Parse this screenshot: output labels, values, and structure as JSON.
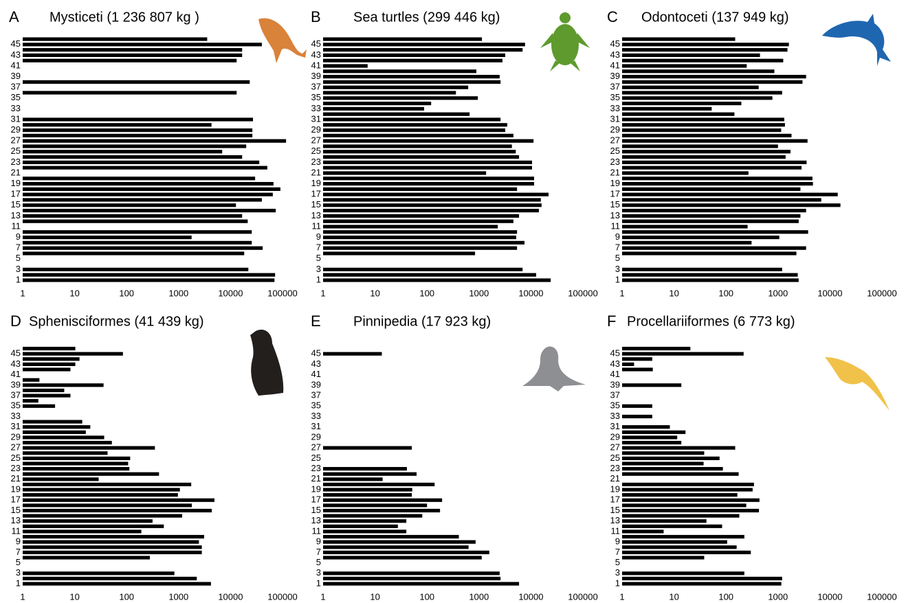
{
  "chart_data": [
    {
      "type": "bar",
      "orientation": "horizontal",
      "label": "A",
      "title": "Mysticeti (1 236 807 kg )",
      "color": "#000000",
      "xscale": "log",
      "xlim": [
        1,
        100000
      ],
      "xticks": [
        1,
        10,
        100,
        1000,
        10000,
        100000
      ],
      "categories": [
        "1",
        null,
        "3",
        null,
        "5",
        null,
        "7",
        null,
        "9",
        null,
        "11",
        null,
        "13",
        null,
        "15",
        null,
        "17",
        null,
        "19",
        null,
        "21",
        null,
        "23",
        null,
        "25",
        null,
        "27",
        null,
        "29",
        null,
        "31",
        null,
        "33",
        null,
        "35",
        null,
        "37",
        null,
        "39",
        null,
        "41",
        null,
        "43",
        null,
        "45",
        null
      ],
      "values": [
        70000,
        72000,
        22000,
        null,
        null,
        18300,
        41500,
        25600,
        1780,
        25600,
        null,
        21400,
        16700,
        74000,
        12700,
        40000,
        65000,
        91000,
        67000,
        29700,
        null,
        51000,
        35700,
        16700,
        6900,
        20000,
        117000,
        26300,
        26300,
        4300,
        27000,
        null,
        null,
        null,
        null,
        13100,
        null,
        23400,
        null,
        null,
        null,
        13100,
        16700,
        16700,
        40000,
        3550
      ]
    },
    {
      "type": "bar",
      "orientation": "horizontal",
      "label": "B",
      "title": "Sea turtles (299 446 kg)",
      "color": "#000000",
      "xscale": "log",
      "xlim": [
        1,
        100000
      ],
      "xticks": [
        1,
        10,
        100,
        1000,
        10000,
        100000
      ],
      "categories": [
        "1",
        null,
        "3",
        null,
        "5",
        null,
        "7",
        null,
        "9",
        null,
        "11",
        null,
        "13",
        null,
        "15",
        null,
        "17",
        null,
        "19",
        null,
        "21",
        null,
        "23",
        null,
        "25",
        null,
        "27",
        null,
        "29",
        null,
        "31",
        null,
        "33",
        null,
        "35",
        null,
        "37",
        null,
        "39",
        null,
        "41",
        null,
        "43",
        null,
        "45",
        null
      ],
      "values": [
        24000,
        12600,
        6900,
        null,
        null,
        840,
        5400,
        7500,
        5200,
        5400,
        2300,
        4600,
        5900,
        14200,
        16000,
        15500,
        21800,
        5400,
        11500,
        11500,
        1370,
        10500,
        10500,
        5900,
        5100,
        4300,
        11200,
        4600,
        3200,
        3500,
        2600,
        660,
        88,
        120,
        950,
        360,
        620,
        2600,
        2500,
        890,
        7.2,
        2830,
        3200,
        6900,
        7700,
        1140
      ]
    },
    {
      "type": "bar",
      "orientation": "horizontal",
      "label": "C",
      "title": "Odontoceti (137 949 kg)",
      "color": "#000000",
      "xscale": "log",
      "xlim": [
        1,
        100000
      ],
      "xticks": [
        1,
        10,
        100,
        1000,
        10000,
        100000
      ],
      "categories": [
        "1",
        null,
        "3",
        null,
        "5",
        null,
        "7",
        null,
        "9",
        null,
        "11",
        null,
        "13",
        null,
        "15",
        null,
        "17",
        null,
        "19",
        null,
        "21",
        null,
        "23",
        null,
        "25",
        null,
        "27",
        null,
        "29",
        null,
        "31",
        null,
        "33",
        null,
        "35",
        null,
        "37",
        null,
        "39",
        null,
        "41",
        null,
        "43",
        null,
        "45",
        null
      ],
      "values": [
        2500,
        2400,
        1200,
        null,
        null,
        2260,
        3470,
        310,
        1060,
        3800,
        260,
        2500,
        2700,
        3470,
        15900,
        6800,
        14100,
        2700,
        4700,
        4600,
        270,
        2840,
        3550,
        1400,
        1740,
        1000,
        3700,
        1820,
        1150,
        1360,
        1320,
        145,
        53,
        197,
        780,
        1200,
        425,
        2960,
        3470,
        850,
        250,
        1260,
        450,
        1520,
        1620,
        150
      ]
    },
    {
      "type": "bar",
      "orientation": "horizontal",
      "label": "D",
      "title": "Sphenisciformes (41 439 kg)",
      "color": "#000000",
      "xscale": "log",
      "xlim": [
        1,
        100000
      ],
      "xticks": [
        1,
        10,
        100,
        1000,
        10000,
        100000
      ],
      "categories": [
        "1",
        null,
        "3",
        null,
        "5",
        null,
        "7",
        null,
        "9",
        null,
        "11",
        null,
        "13",
        null,
        "15",
        null,
        "17",
        null,
        "19",
        null,
        "21",
        null,
        "23",
        null,
        "25",
        null,
        "27",
        null,
        "29",
        null,
        "31",
        null,
        "33",
        null,
        "35",
        null,
        "37",
        null,
        "39",
        null,
        "41",
        null,
        "43",
        null,
        "45",
        null
      ],
      "values": [
        4200,
        2240,
        830,
        null,
        null,
        280,
        2800,
        2800,
        2460,
        3100,
        192,
        520,
        315,
        1170,
        4350,
        1800,
        4900,
        970,
        1060,
        1750,
        29,
        420,
        113,
        107,
        117,
        43,
        350,
        52,
        37,
        16.4,
        20,
        14,
        null,
        null,
        4.2,
        2.0,
        8.3,
        6.3,
        36,
        2.1,
        null,
        8.3,
        10.3,
        12.4,
        85,
        10.3
      ]
    },
    {
      "type": "bar",
      "orientation": "horizontal",
      "label": "E",
      "title": "Pinnipedia (17 923 kg)",
      "color": "#000000",
      "xscale": "log",
      "xlim": [
        1,
        100000
      ],
      "xticks": [
        1,
        10,
        100,
        1000,
        10000,
        100000
      ],
      "categories": [
        "1",
        null,
        "3",
        null,
        "5",
        null,
        "7",
        null,
        "9",
        null,
        "11",
        null,
        "13",
        null,
        "15",
        null,
        "17",
        null,
        "19",
        null,
        "21",
        null,
        "23",
        null,
        "25",
        null,
        "27",
        null,
        "29",
        null,
        "31",
        null,
        "33",
        null,
        "35",
        null,
        "37",
        null,
        "39",
        null,
        "41",
        null,
        "43",
        null,
        "45",
        null
      ],
      "values": [
        5900,
        2600,
        2500,
        null,
        null,
        1130,
        1580,
        630,
        860,
        410,
        40,
        27.5,
        40,
        81,
        178,
        100,
        195,
        51,
        52,
        140,
        14,
        63,
        41,
        null,
        null,
        null,
        51,
        null,
        null,
        null,
        null,
        null,
        null,
        null,
        null,
        null,
        null,
        null,
        null,
        null,
        null,
        null,
        null,
        null,
        13.5,
        null
      ]
    },
    {
      "type": "bar",
      "orientation": "horizontal",
      "label": "F",
      "title": "Procellariiformes (6 773 kg)",
      "color": "#000000",
      "xscale": "log",
      "xlim": [
        1,
        100000
      ],
      "xticks": [
        1,
        10,
        100,
        1000,
        10000,
        100000
      ],
      "categories": [
        "1",
        null,
        "3",
        null,
        "5",
        null,
        "7",
        null,
        "9",
        null,
        "11",
        null,
        "13",
        null,
        "15",
        null,
        "17",
        null,
        "19",
        null,
        "21",
        null,
        "23",
        null,
        "25",
        null,
        "27",
        null,
        "29",
        null,
        "31",
        null,
        "33",
        null,
        "35",
        null,
        "37",
        null,
        "39",
        null,
        "41",
        null,
        "43",
        null,
        "45",
        null
      ],
      "values": [
        1160,
        1200,
        225,
        null,
        null,
        38,
        300,
        160,
        105,
        225,
        6.3,
        84,
        42,
        180,
        430,
        245,
        440,
        165,
        325,
        345,
        null,
        175,
        87,
        37,
        75,
        38,
        150,
        13.8,
        11.5,
        16.6,
        8.3,
        null,
        3.8,
        null,
        3.8,
        null,
        null,
        null,
        13.8,
        null,
        null,
        3.9,
        1.7,
        3.8,
        218,
        20.6
      ]
    }
  ]
}
